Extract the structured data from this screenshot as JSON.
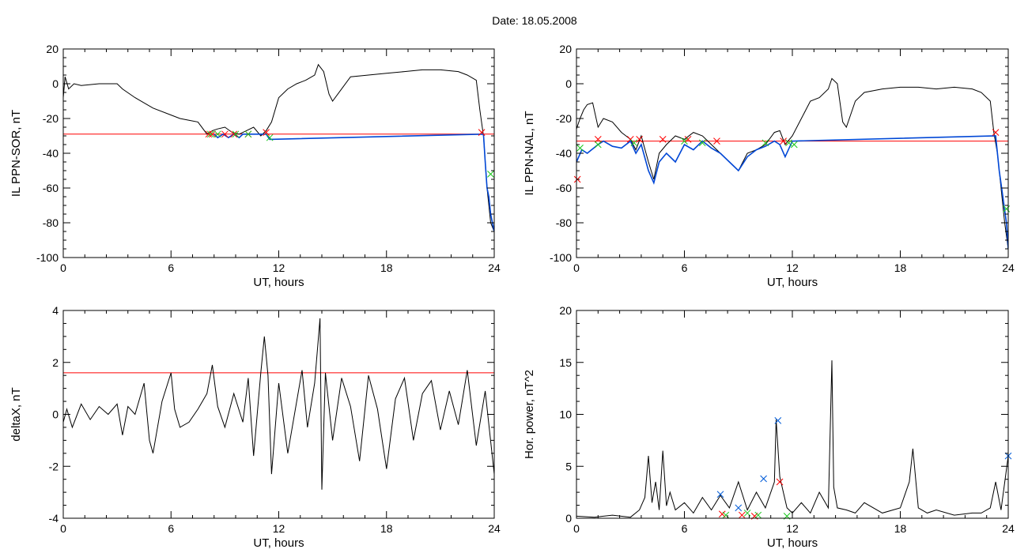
{
  "page": {
    "title": "Date:  18.05.2008"
  },
  "colors": {
    "series": "#000000",
    "threshold": "#ff0000",
    "blue": "#0047d6",
    "green": "#19c71c",
    "red_marker": "#ff0000",
    "blue_marker": "#005bd8"
  },
  "chart_data": [
    {
      "type": "line",
      "title": "",
      "xlabel": "UT, hours",
      "ylabel": "IL PPN-SOR, nT",
      "xlim": [
        0,
        24
      ],
      "ylim": [
        -100,
        20
      ],
      "xticks": [
        0,
        6,
        12,
        18,
        24
      ],
      "yticks": [
        -100,
        -80,
        -60,
        -40,
        -20,
        0,
        20
      ],
      "threshold": -29,
      "series": [
        {
          "style": "line",
          "x": [
            0,
            0.1,
            0.3,
            0.6,
            1,
            2,
            3,
            3.3,
            4,
            5,
            6,
            6.5,
            7,
            7.5,
            8,
            8.3,
            8.6,
            9,
            9.4,
            9.8,
            10.2,
            10.6,
            11,
            11.3,
            11.6,
            12,
            12.5,
            13,
            13.5,
            14,
            14.2,
            14.5,
            14.8,
            15,
            15.5,
            16,
            17,
            18,
            19,
            20,
            21,
            22,
            22.5,
            23,
            23.2,
            23.4,
            23.6,
            23.8,
            24
          ],
          "y": [
            -8,
            4,
            -3,
            0,
            -1,
            0,
            0,
            -3,
            -8,
            -14,
            -18,
            -20,
            -21,
            -22,
            -29,
            -27,
            -26,
            -25,
            -28,
            -29,
            -27,
            -25,
            -30,
            -27,
            -22,
            -8,
            -3,
            0,
            2,
            5,
            11,
            7,
            -6,
            -10,
            -3,
            4,
            5,
            6,
            7,
            8,
            8,
            7,
            5,
            2,
            -15,
            -30,
            -60,
            -80,
            -85
          ]
        },
        {
          "style": "line-blue",
          "x": [
            8.4,
            8.6,
            8.9,
            9.2,
            9.5,
            9.8,
            10,
            11.3,
            11.5,
            23.4,
            23.5,
            23.6,
            23.7,
            23.8,
            23.9,
            24
          ],
          "y": [
            -29,
            -31,
            -29,
            -31,
            -29,
            -31,
            -29,
            -29,
            -32,
            -29,
            -45,
            -60,
            -65,
            -75,
            -80,
            -85
          ]
        }
      ],
      "markers": [
        {
          "type": "x",
          "color": "red",
          "x": [
            8.1,
            8.3,
            9.0,
            9.5,
            10.3,
            11.3,
            23.3
          ],
          "y": [
            -29,
            -29,
            -29,
            -29,
            -29,
            -28,
            -28
          ]
        },
        {
          "type": "x",
          "color": "green",
          "x": [
            8.2,
            8.6,
            9.6,
            10.3,
            11.5,
            23.8
          ],
          "y": [
            -29,
            -29,
            -29,
            -29,
            -31,
            -52
          ]
        }
      ]
    },
    {
      "type": "line",
      "title": "",
      "xlabel": "UT, hours",
      "ylabel": "IL PPN-NAL, nT",
      "xlim": [
        0,
        24
      ],
      "ylim": [
        -100,
        20
      ],
      "xticks": [
        0,
        6,
        12,
        18,
        24
      ],
      "yticks": [
        -100,
        -80,
        -60,
        -40,
        -20,
        0,
        20
      ],
      "threshold": -33,
      "series": [
        {
          "style": "line",
          "x": [
            0,
            0.2,
            0.4,
            0.6,
            0.9,
            1.2,
            1.5,
            2,
            2.5,
            3,
            3.3,
            3.6,
            4,
            4.3,
            4.6,
            5,
            5.5,
            6,
            6.5,
            7,
            7.5,
            8,
            8.5,
            9,
            9.5,
            10,
            10.5,
            11,
            11.3,
            11.6,
            12,
            12.5,
            13,
            13.5,
            14,
            14.2,
            14.5,
            14.8,
            15,
            15.5,
            16,
            17,
            18,
            19,
            20,
            21,
            22,
            22.5,
            23,
            23.2,
            23.4,
            23.6,
            23.8,
            24
          ],
          "y": [
            -26,
            -20,
            -15,
            -12,
            -11,
            -25,
            -20,
            -22,
            -28,
            -32,
            -38,
            -30,
            -45,
            -55,
            -40,
            -35,
            -30,
            -32,
            -28,
            -30,
            -35,
            -40,
            -45,
            -50,
            -40,
            -38,
            -35,
            -28,
            -27,
            -35,
            -30,
            -20,
            -10,
            -8,
            -3,
            3,
            0,
            -22,
            -25,
            -10,
            -5,
            -3,
            -2,
            -2,
            -3,
            -2,
            -3,
            -5,
            -10,
            -28,
            -40,
            -60,
            -80,
            -95
          ]
        },
        {
          "style": "line-blue",
          "x": [
            0,
            0.3,
            0.6,
            1.2,
            1.5,
            2,
            2.5,
            3,
            3.3,
            3.6,
            4,
            4.3,
            4.6,
            5,
            5.5,
            6,
            6.5,
            7,
            7.5,
            8,
            8.5,
            9,
            9.5,
            10,
            10.5,
            11,
            11.3,
            11.6,
            12,
            23.3,
            23.5,
            23.7,
            23.9,
            24
          ],
          "y": [
            -45,
            -38,
            -40,
            -35,
            -33,
            -36,
            -37,
            -33,
            -40,
            -35,
            -50,
            -57,
            -45,
            -40,
            -45,
            -35,
            -38,
            -33,
            -37,
            -40,
            -45,
            -50,
            -42,
            -38,
            -36,
            -33,
            -35,
            -42,
            -33,
            -30,
            -50,
            -65,
            -80,
            -95
          ]
        }
      ],
      "markers": [
        {
          "type": "x",
          "color": "red",
          "x": [
            0.05,
            1.2,
            3.0,
            3.5,
            4.8,
            6.2,
            7.8,
            11.5,
            23.3
          ],
          "y": [
            -55,
            -32,
            -32,
            -32,
            -32,
            -32,
            -33,
            -33,
            -28
          ]
        },
        {
          "type": "x",
          "color": "green",
          "x": [
            0.2,
            1.2,
            3.2,
            6.0,
            7.0,
            10.5,
            11.8,
            12.1,
            23.9
          ],
          "y": [
            -37,
            -35,
            -34,
            -33,
            -34,
            -34,
            -34,
            -35,
            -72
          ]
        }
      ]
    },
    {
      "type": "line",
      "title": "",
      "xlabel": "UT, hours",
      "ylabel": "deltaX, nT",
      "xlim": [
        0,
        24
      ],
      "ylim": [
        -4,
        4
      ],
      "xticks": [
        0,
        6,
        12,
        18,
        24
      ],
      "yticks": [
        -4,
        -2,
        0,
        2,
        4
      ],
      "threshold": 1.6,
      "series": [
        {
          "style": "line",
          "x": [
            0,
            0.2,
            0.5,
            1,
            1.5,
            2,
            2.5,
            3,
            3.3,
            3.6,
            4,
            4.5,
            4.8,
            5,
            5.5,
            6,
            6.2,
            6.5,
            7,
            7.5,
            8,
            8.3,
            8.6,
            9,
            9.5,
            10,
            10.3,
            10.6,
            11,
            11.2,
            11.4,
            11.6,
            12,
            12.5,
            13,
            13.3,
            13.6,
            14,
            14.3,
            14.4,
            14.6,
            15,
            15.5,
            16,
            16.5,
            17,
            17.5,
            18,
            18.5,
            19,
            19.5,
            20,
            20.5,
            21,
            21.5,
            22,
            22.5,
            23,
            23.5,
            24
          ],
          "y": [
            -0.3,
            0.2,
            -0.5,
            0.4,
            -0.2,
            0.3,
            0,
            0.4,
            -0.8,
            0.3,
            0,
            1.2,
            -1.0,
            -1.5,
            0.5,
            1.6,
            0.2,
            -0.5,
            -0.3,
            0.2,
            0.8,
            1.9,
            0.3,
            -0.5,
            0.8,
            -0.3,
            1.4,
            -1.6,
            1.6,
            3.0,
            1.5,
            -2.3,
            1.2,
            -1.5,
            0.5,
            1.7,
            -0.5,
            1.2,
            3.7,
            -2.9,
            1.6,
            -1.0,
            1.4,
            0.3,
            -1.8,
            1.5,
            0.2,
            -2.1,
            0.6,
            1.4,
            -1.0,
            0.8,
            1.3,
            -0.6,
            0.9,
            -0.4,
            1.7,
            -1.2,
            0.9,
            -2.3
          ]
        }
      ],
      "markers": []
    },
    {
      "type": "line",
      "title": "",
      "xlabel": "UT, hours",
      "ylabel": "Hor. power, nT^2",
      "xlim": [
        0,
        24
      ],
      "ylim": [
        0,
        20
      ],
      "xticks": [
        0,
        6,
        12,
        18,
        24
      ],
      "yticks": [
        0,
        5,
        10,
        15,
        20
      ],
      "threshold": null,
      "series": [
        {
          "style": "line",
          "x": [
            0,
            1,
            2,
            3,
            3.5,
            3.8,
            4,
            4.2,
            4.4,
            4.6,
            4.8,
            5,
            5.2,
            5.5,
            6,
            6.5,
            7,
            7.5,
            8,
            8.5,
            9,
            9.5,
            10,
            10.5,
            11,
            11.1,
            11.3,
            11.5,
            11.7,
            12,
            12.5,
            13,
            13.5,
            14,
            14.2,
            14.3,
            14.5,
            15,
            15.5,
            16,
            17,
            18,
            18.5,
            18.7,
            19,
            19.5,
            20,
            21,
            22,
            22.5,
            23,
            23.3,
            23.6,
            24
          ],
          "y": [
            0.2,
            0.1,
            0.3,
            0.1,
            0.8,
            2.0,
            6.0,
            1.5,
            3.5,
            0.8,
            6.5,
            1.2,
            2.5,
            0.8,
            1.5,
            0.5,
            2.0,
            0.8,
            2.2,
            1.0,
            3.5,
            0.8,
            2.5,
            1.0,
            3.5,
            9.5,
            4.0,
            2.5,
            1.0,
            0.5,
            1.5,
            0.5,
            2.5,
            1.0,
            15.2,
            3.0,
            1.0,
            0.8,
            0.5,
            1.5,
            0.5,
            1.0,
            3.5,
            6.7,
            1.0,
            0.5,
            0.8,
            0.3,
            0.5,
            0.5,
            1.0,
            3.5,
            0.8,
            6.0
          ]
        }
      ],
      "markers": [
        {
          "type": "x",
          "color": "blue",
          "x": [
            8.0,
            9.0,
            10.4,
            11.2,
            24.0
          ],
          "y": [
            2.3,
            1.0,
            3.8,
            9.4,
            6.0
          ]
        },
        {
          "type": "x",
          "color": "red",
          "x": [
            8.1,
            9.2,
            9.9,
            11.3
          ],
          "y": [
            0.4,
            0.3,
            0.2,
            3.5
          ]
        },
        {
          "type": "x",
          "color": "green",
          "x": [
            8.3,
            9.5,
            10.1,
            11.7
          ],
          "y": [
            0.3,
            0.5,
            0.3,
            0.2
          ]
        }
      ]
    }
  ]
}
